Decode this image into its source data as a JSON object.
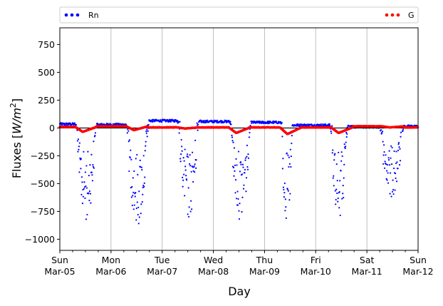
{
  "chart_data": {
    "type": "scatter",
    "xlabel": "Day",
    "ylabel": "Fluxes [W/m²]",
    "ylabel_parts": {
      "main": "Fluxes [",
      "var": "W/m",
      "sup": "2",
      "close": "]"
    },
    "x_unit": "days",
    "xlim": [
      "2017-03-05",
      "2017-03-12"
    ],
    "ylim": [
      -1100,
      900
    ],
    "yticks": [
      -1000,
      -750,
      -500,
      -250,
      0,
      250,
      500,
      750
    ],
    "xticks": [
      {
        "day": "Sun",
        "date": "Mar-05"
      },
      {
        "day": "Mon",
        "date": "Mar-06"
      },
      {
        "day": "Tue",
        "date": "Mar-07"
      },
      {
        "day": "Wed",
        "date": "Mar-08"
      },
      {
        "day": "Thu",
        "date": "Mar-09"
      },
      {
        "day": "Fri",
        "date": "Mar-10"
      },
      {
        "day": "Sat",
        "date": "Mar-11"
      },
      {
        "day": "Sun",
        "date": "Mar-12"
      }
    ],
    "grid": "vertical",
    "zero_line": true,
    "legend": {
      "placement": "top, above plot",
      "entries": [
        "Rn",
        "G"
      ]
    },
    "series": [
      {
        "name": "Rn",
        "color": "#0000ff",
        "marker": "point",
        "note": "sign-flipped net radiation; ~+40 at night, deep negative daytime troughs",
        "daily_envelope": [
          {
            "date": "2017-03-05",
            "night_level": 35,
            "trough_min": -850,
            "trough_start": 0.3,
            "trough_end": 0.72
          },
          {
            "date": "2017-03-06",
            "night_level": 30,
            "trough_min": -900,
            "trough_start": 0.3,
            "trough_end": 0.74
          },
          {
            "date": "2017-03-07",
            "night_level": 65,
            "trough_min": -840,
            "trough_start": 0.3,
            "trough_end": 0.72
          },
          {
            "date": "2017-03-08",
            "night_level": 58,
            "trough_min": -830,
            "trough_start": 0.32,
            "trough_end": 0.74
          },
          {
            "date": "2017-03-09",
            "night_level": 50,
            "trough_min": -900,
            "trough_start": 0.32,
            "trough_end": 0.56
          },
          {
            "date": "2017-03-10",
            "night_level": 25,
            "trough_min": -840,
            "trough_start": 0.28,
            "trough_end": 0.64
          },
          {
            "date": "2017-03-11",
            "night_level": 10,
            "trough_min": -650,
            "trough_start": 0.25,
            "trough_end": 0.72
          }
        ],
        "end_value": 15
      },
      {
        "name": "G",
        "color": "#ff0000",
        "marker": "point",
        "note": "ground heat flux; near 0 at night, small dip (~-40) around midday",
        "daily_envelope": [
          {
            "date": "2017-03-05",
            "night_level": 10,
            "dip_min": -35
          },
          {
            "date": "2017-03-06",
            "night_level": 15,
            "dip_min": -20
          },
          {
            "date": "2017-03-07",
            "night_level": 5,
            "dip_min": -5
          },
          {
            "date": "2017-03-08",
            "night_level": 5,
            "dip_min": -45
          },
          {
            "date": "2017-03-09",
            "night_level": 5,
            "dip_min": -55
          },
          {
            "date": "2017-03-10",
            "night_level": 5,
            "dip_min": -45
          },
          {
            "date": "2017-03-11",
            "night_level": 15,
            "dip_min": 5
          }
        ],
        "end_value": 5
      }
    ]
  }
}
